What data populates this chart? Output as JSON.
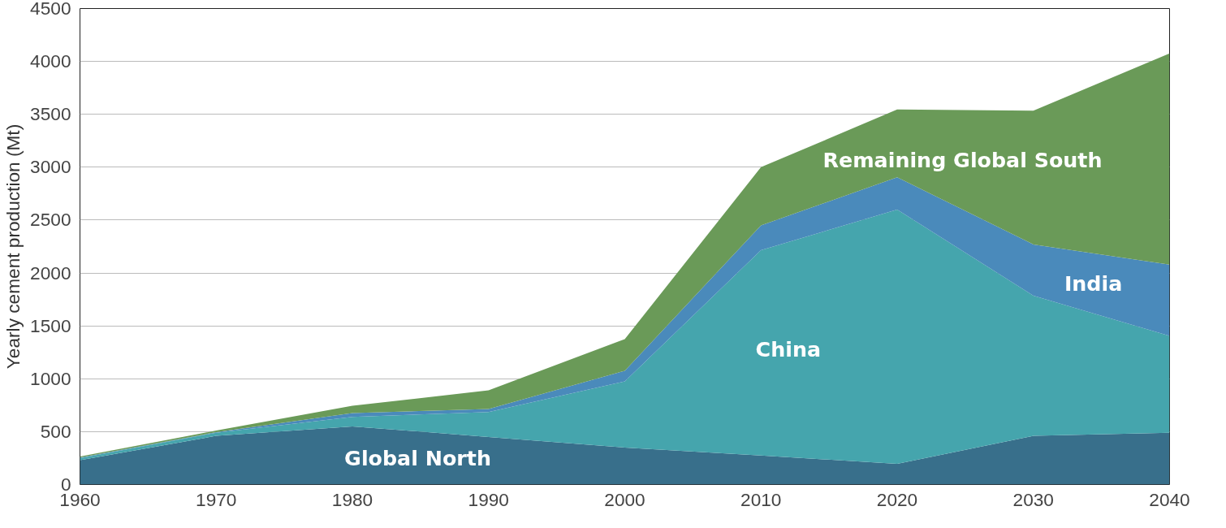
{
  "chart_data": {
    "type": "area",
    "stacked": true,
    "ylabel": "Yearly cement production (Mt)",
    "x": [
      1960,
      1970,
      1980,
      1990,
      2000,
      2010,
      2020,
      2030,
      2040
    ],
    "series": [
      {
        "name": "Global North",
        "color": "#386f8b",
        "values": [
          230,
          460,
          550,
          450,
          350,
          275,
          195,
          460,
          490
        ]
      },
      {
        "name": "China",
        "color": "#45a5ad",
        "values": [
          20,
          30,
          90,
          235,
          625,
          1940,
          2405,
          1325,
          915
        ]
      },
      {
        "name": "India",
        "color": "#4a8abb",
        "values": [
          5,
          5,
          35,
          30,
          100,
          235,
          305,
          485,
          675
        ]
      },
      {
        "name": "Remaining Global South",
        "color": "#6a9a58",
        "values": [
          10,
          15,
          70,
          175,
          300,
          550,
          640,
          1265,
          1995
        ]
      }
    ],
    "xlim": [
      1960,
      2040
    ],
    "xticks": [
      1960,
      1970,
      1980,
      1990,
      2000,
      2010,
      2020,
      2030,
      2040
    ],
    "ylim": [
      0,
      4500
    ],
    "yticks": [
      0,
      500,
      1000,
      1500,
      2000,
      2500,
      3000,
      3500,
      4000,
      4500
    ],
    "grid": "y"
  }
}
